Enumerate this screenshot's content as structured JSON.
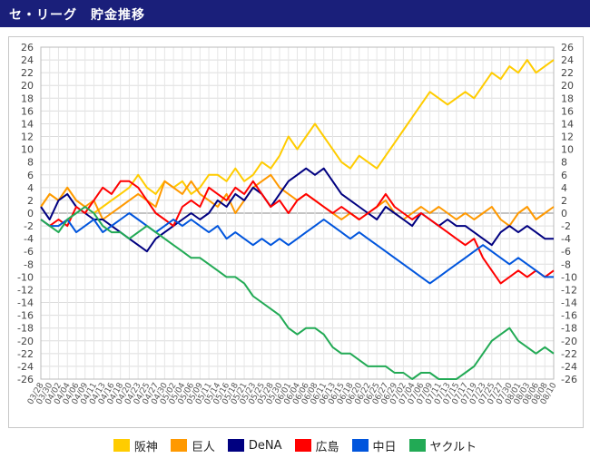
{
  "title": "セ・リーグ　貯金推移",
  "chart_data": {
    "type": "line",
    "ylim": [
      -26,
      26
    ],
    "ytick_step": 2,
    "grid": true,
    "legend": "bottom",
    "x": [
      "03/28",
      "03/30",
      "04/02",
      "04/04",
      "04/06",
      "04/09",
      "04/11",
      "04/13",
      "04/16",
      "04/18",
      "04/20",
      "04/23",
      "04/25",
      "04/27",
      "04/30",
      "05/02",
      "05/04",
      "05/06",
      "05/09",
      "05/11",
      "05/14",
      "05/16",
      "05/18",
      "05/21",
      "05/23",
      "05/25",
      "05/28",
      "05/30",
      "06/01",
      "06/04",
      "06/06",
      "06/08",
      "06/11",
      "06/13",
      "06/15",
      "06/18",
      "06/20",
      "06/22",
      "06/25",
      "06/27",
      "06/29",
      "07/02",
      "07/04",
      "07/06",
      "07/09",
      "07/11",
      "07/13",
      "07/15",
      "07/17",
      "07/19",
      "07/23",
      "07/25",
      "07/27",
      "07/30",
      "08/01",
      "08/03",
      "08/06",
      "08/08",
      "08/10"
    ],
    "series": [
      {
        "name": "阪神",
        "color": "#ffcc00",
        "values": [
          1,
          3,
          2,
          4,
          2,
          1,
          0,
          1,
          2,
          3,
          4,
          6,
          4,
          3,
          5,
          4,
          5,
          3,
          4,
          6,
          6,
          5,
          7,
          5,
          6,
          8,
          7,
          9,
          12,
          10,
          12,
          14,
          12,
          10,
          8,
          7,
          9,
          8,
          7,
          9,
          11,
          13,
          15,
          17,
          19,
          18,
          17,
          18,
          19,
          18,
          20,
          22,
          21,
          23,
          22,
          24,
          22,
          23,
          24
        ]
      },
      {
        "name": "巨人",
        "color": "#ff9900",
        "values": [
          1,
          3,
          2,
          4,
          2,
          1,
          2,
          -1,
          0,
          1,
          2,
          3,
          2,
          1,
          5,
          4,
          3,
          5,
          3,
          2,
          1,
          3,
          0,
          2,
          4,
          5,
          6,
          4,
          3,
          2,
          3,
          2,
          1,
          0,
          -1,
          0,
          -1,
          0,
          1,
          2,
          0,
          -1,
          0,
          1,
          0,
          1,
          0,
          -1,
          0,
          -1,
          0,
          1,
          -1,
          -2,
          0,
          1,
          -1,
          0,
          1
        ]
      },
      {
        "name": "DeNA",
        "color": "#000080",
        "values": [
          1,
          -1,
          2,
          3,
          1,
          0,
          -1,
          -1,
          -2,
          -3,
          -4,
          -5,
          -6,
          -4,
          -3,
          -2,
          -1,
          0,
          -1,
          0,
          2,
          1,
          3,
          2,
          4,
          3,
          1,
          3,
          5,
          6,
          7,
          6,
          7,
          5,
          3,
          2,
          1,
          0,
          -1,
          1,
          0,
          -1,
          -2,
          0,
          -1,
          -2,
          -1,
          -2,
          -2,
          -3,
          -4,
          -5,
          -3,
          -2,
          -3,
          -2,
          -3,
          -4,
          -4
        ]
      },
      {
        "name": "広島",
        "color": "#ff0000",
        "values": [
          -1,
          -2,
          -1,
          -2,
          1,
          0,
          2,
          4,
          3,
          5,
          5,
          4,
          2,
          0,
          -1,
          -2,
          1,
          2,
          1,
          4,
          3,
          2,
          4,
          3,
          5,
          3,
          1,
          2,
          0,
          2,
          3,
          2,
          1,
          0,
          1,
          0,
          -1,
          0,
          1,
          3,
          1,
          0,
          -1,
          0,
          -1,
          -2,
          -3,
          -4,
          -5,
          -4,
          -7,
          -9,
          -11,
          -10,
          -9,
          -10,
          -9,
          -10,
          -9
        ]
      },
      {
        "name": "中日",
        "color": "#0055dd",
        "values": [
          -1,
          -2,
          -2,
          -1,
          -3,
          -2,
          -1,
          -3,
          -2,
          -1,
          0,
          -1,
          -2,
          -3,
          -2,
          -1,
          -2,
          -1,
          -2,
          -3,
          -2,
          -4,
          -3,
          -4,
          -5,
          -4,
          -5,
          -4,
          -5,
          -4,
          -3,
          -2,
          -1,
          -2,
          -3,
          -4,
          -3,
          -4,
          -5,
          -6,
          -7,
          -8,
          -9,
          -10,
          -11,
          -10,
          -9,
          -8,
          -7,
          -6,
          -5,
          -6,
          -7,
          -8,
          -7,
          -8,
          -9,
          -10,
          -10
        ]
      },
      {
        "name": "ヤクルト",
        "color": "#22aa55",
        "values": [
          -1,
          -2,
          -3,
          -1,
          0,
          1,
          0,
          -2,
          -3,
          -3,
          -4,
          -3,
          -2,
          -3,
          -4,
          -5,
          -6,
          -7,
          -7,
          -8,
          -9,
          -10,
          -10,
          -11,
          -13,
          -14,
          -15,
          -16,
          -18,
          -19,
          -18,
          -18,
          -19,
          -21,
          -22,
          -22,
          -23,
          -24,
          -24,
          -24,
          -25,
          -25,
          -26,
          -25,
          -25,
          -26,
          -26,
          -26,
          -25,
          -24,
          -22,
          -20,
          -19,
          -18,
          -20,
          -21,
          -22,
          -21,
          -22
        ]
      }
    ]
  }
}
